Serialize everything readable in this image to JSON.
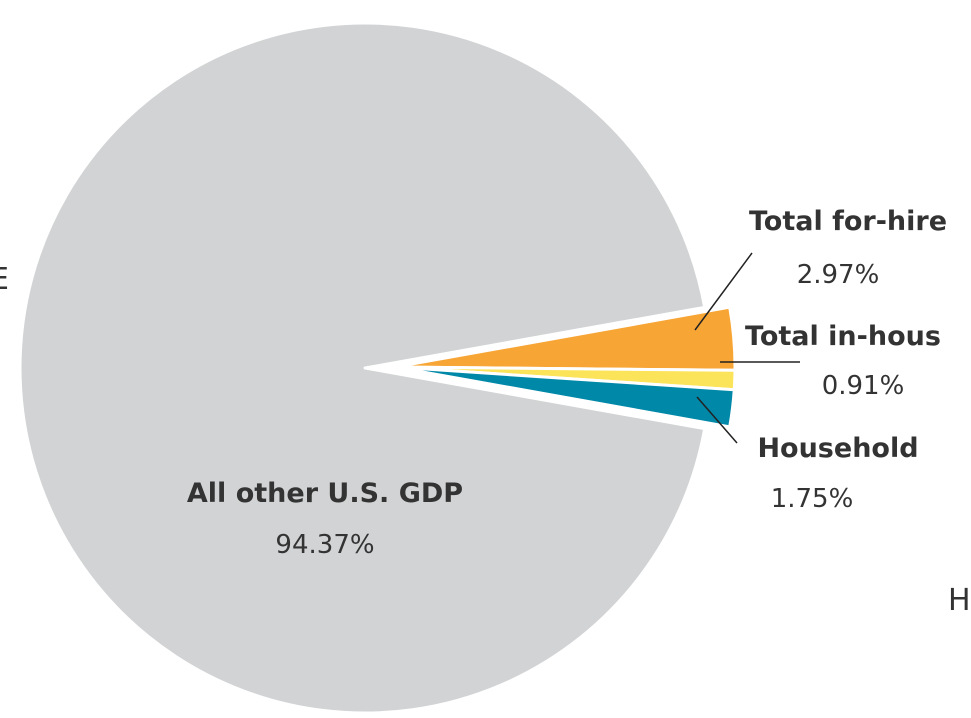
{
  "chart_data": {
    "type": "pie",
    "slices": [
      {
        "name": "All other U.S. GDP",
        "value": 94.37,
        "label": "94.37%",
        "color": "#d1d3d4"
      },
      {
        "name": "Total for-hire",
        "value": 2.97,
        "label": "2.97%",
        "color": "#f7a534"
      },
      {
        "name": "Total in-hous",
        "value": 0.91,
        "label": "0.91%",
        "color": "#fbe35a"
      },
      {
        "name": "Household",
        "value": 1.75,
        "label": "1.75%",
        "color": "#0088a8"
      }
    ],
    "fragments": {
      "left_edge": "E",
      "right_edge": "H"
    }
  }
}
